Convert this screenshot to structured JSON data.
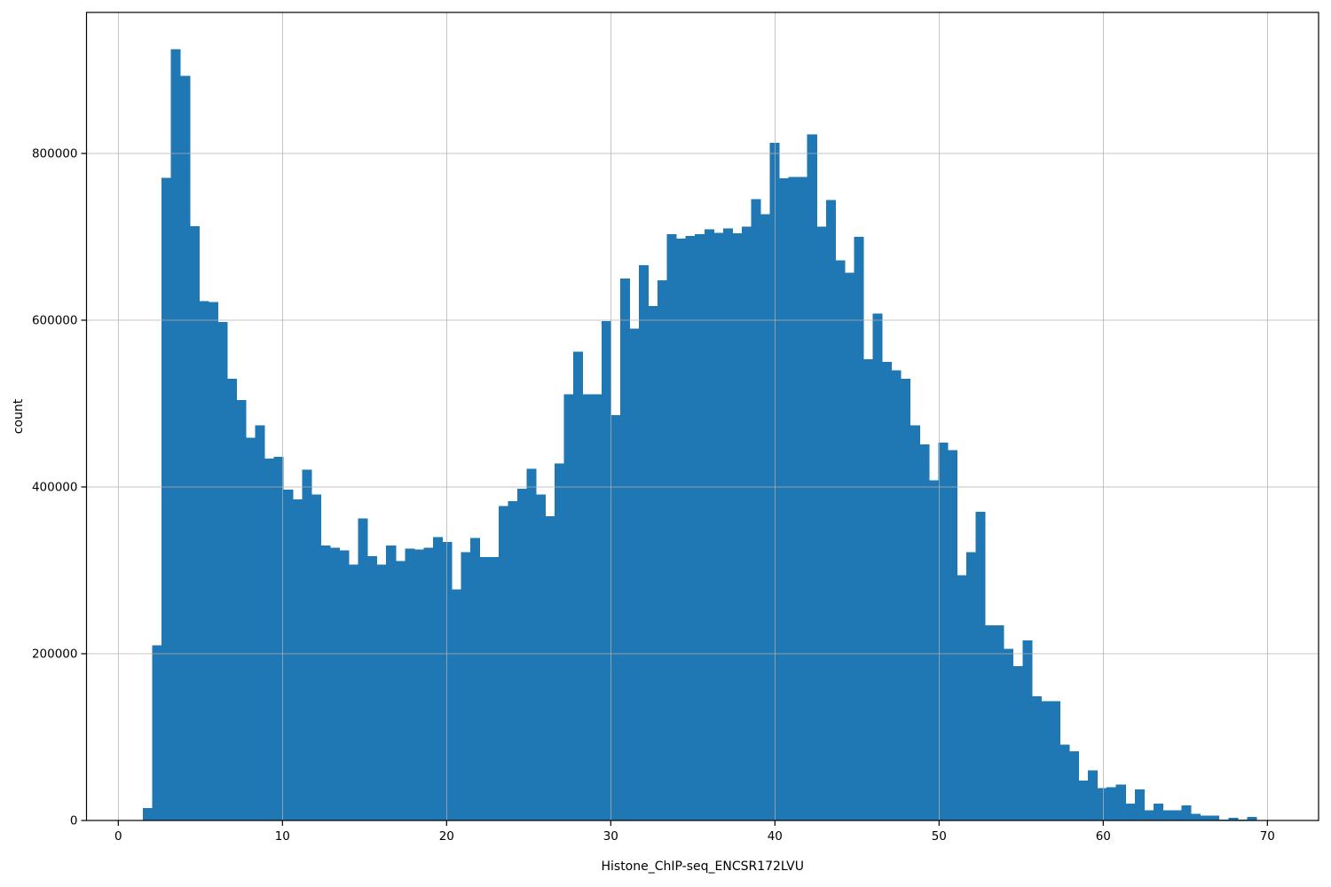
{
  "figure": {
    "background": "#ffffff"
  },
  "chart_data": {
    "type": "bar",
    "subtype": "histogram",
    "title": "",
    "xlabel": "Histone_ChIP-seq_ENCSR172LVU",
    "ylabel": "count",
    "legend": null,
    "grid": true,
    "grid_color": "#b0b0b0",
    "bar_color": "#1f77b4",
    "spine_color": "#000000",
    "bin_start": 1.5,
    "bin_width": 0.57,
    "xlim": [
      -1.96,
      73.1
    ],
    "ylim": [
      0,
      971250
    ],
    "x_ticks": [
      0,
      10,
      20,
      30,
      40,
      50,
      60,
      70
    ],
    "y_ticks": [
      0,
      200000,
      400000,
      600000,
      800000
    ],
    "values": [
      15000,
      210000,
      771000,
      925000,
      893000,
      713000,
      623000,
      622000,
      598000,
      530000,
      504000,
      459000,
      474000,
      434000,
      436000,
      397000,
      385000,
      421000,
      391000,
      330000,
      327000,
      324000,
      307000,
      362000,
      317000,
      307000,
      330000,
      311000,
      326000,
      325000,
      327000,
      340000,
      334000,
      277000,
      322000,
      339000,
      316000,
      316000,
      377000,
      383000,
      398000,
      422000,
      391000,
      365000,
      428000,
      511000,
      562000,
      511000,
      511000,
      599000,
      486000,
      650000,
      590000,
      666000,
      617000,
      648000,
      703000,
      698000,
      701000,
      703000,
      709000,
      705000,
      710000,
      704000,
      712000,
      745000,
      727000,
      813000,
      770000,
      772000,
      772000,
      823000,
      712000,
      744000,
      672000,
      657000,
      700000,
      553000,
      608000,
      550000,
      540000,
      530000,
      474000,
      451000,
      408000,
      453000,
      444000,
      294000,
      322000,
      370000,
      234000,
      234000,
      206000,
      185000,
      216000,
      149000,
      143000,
      143000,
      91000,
      83000,
      48000,
      60000,
      39000,
      40000,
      43000,
      20000,
      37000,
      12000,
      20000,
      12000,
      12000,
      18000,
      8000,
      6000,
      6000,
      1000,
      3000,
      1000,
      4000,
      0
    ]
  }
}
